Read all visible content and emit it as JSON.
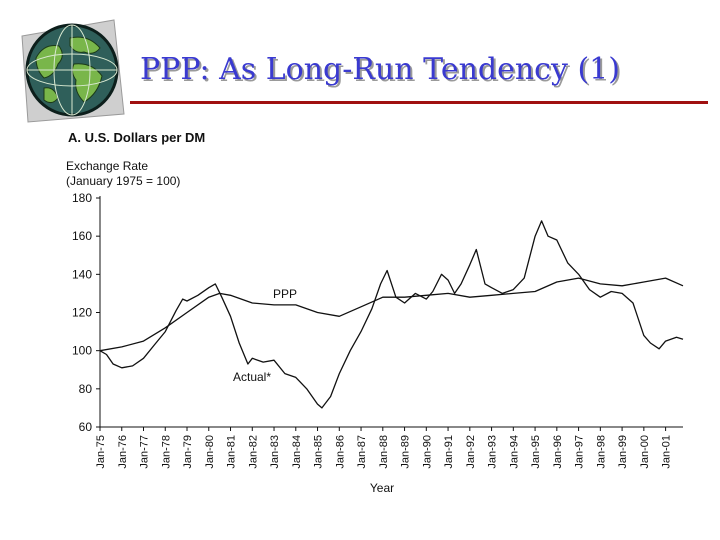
{
  "slide": {
    "title": "PPP: As Long-Run Tendency (1)",
    "title_color": "#3a3ad0",
    "rule_color": "#a01010",
    "logo": "globe-icon"
  },
  "chart_data": {
    "type": "line",
    "title": "A. U.S. Dollars per DM",
    "ylabel": "Exchange Rate (January 1975 = 100)",
    "xlabel": "Year",
    "ylim": [
      60,
      180
    ],
    "yticks": [
      60,
      80,
      100,
      120,
      140,
      160,
      180
    ],
    "categories": [
      "Jan-75",
      "Jan-76",
      "Jan-77",
      "Jan-78",
      "Jan-79",
      "Jan-80",
      "Jan-81",
      "Jan-82",
      "Jan-83",
      "Jan-84",
      "Jan-85",
      "Jan-86",
      "Jan-87",
      "Jan-88",
      "Jan-89",
      "Jan-90",
      "Jan-91",
      "Jan-92",
      "Jan-93",
      "Jan-94",
      "Jan-95",
      "Jan-96",
      "Jan-97",
      "Jan-98",
      "Jan-99",
      "Jan-00",
      "Jan-01"
    ],
    "series": [
      {
        "name": "Actual*",
        "label": "Actual*",
        "color": "#111111",
        "x": [
          1975.0,
          1975.3,
          1975.6,
          1976.0,
          1976.5,
          1977.0,
          1977.5,
          1978.0,
          1978.5,
          1978.8,
          1979.0,
          1979.5,
          1980.0,
          1980.3,
          1980.6,
          1981.0,
          1981.4,
          1981.8,
          1982.0,
          1982.5,
          1983.0,
          1983.5,
          1984.0,
          1984.5,
          1985.0,
          1985.2,
          1985.6,
          1986.0,
          1986.5,
          1987.0,
          1987.5,
          1987.9,
          1988.2,
          1988.6,
          1989.0,
          1989.5,
          1990.0,
          1990.3,
          1990.7,
          1991.0,
          1991.3,
          1991.6,
          1992.0,
          1992.3,
          1992.7,
          1993.0,
          1993.5,
          1994.0,
          1994.5,
          1995.0,
          1995.3,
          1995.6,
          1996.0,
          1996.5,
          1997.0,
          1997.5,
          1998.0,
          1998.5,
          1999.0,
          1999.5,
          2000.0,
          2000.3,
          2000.7,
          2001.0,
          2001.5,
          2001.8
        ],
        "values": [
          100,
          98,
          93,
          91,
          92,
          96,
          103,
          110,
          121,
          127,
          126,
          129,
          133,
          135,
          128,
          118,
          104,
          93,
          96,
          94,
          95,
          88,
          86,
          80,
          72,
          70,
          76,
          88,
          100,
          110,
          122,
          135,
          142,
          128,
          125,
          130,
          127,
          131,
          140,
          137,
          130,
          135,
          145,
          153,
          135,
          133,
          130,
          132,
          138,
          160,
          168,
          160,
          158,
          146,
          140,
          132,
          128,
          131,
          130,
          125,
          108,
          104,
          101,
          105,
          107,
          106
        ]
      },
      {
        "name": "PPP",
        "label": "PPP",
        "color": "#111111",
        "x": [
          1975.0,
          1976.0,
          1977.0,
          1978.0,
          1979.0,
          1980.0,
          1980.5,
          1981.0,
          1982.0,
          1983.0,
          1984.0,
          1985.0,
          1986.0,
          1987.0,
          1988.0,
          1989.0,
          1990.0,
          1991.0,
          1992.0,
          1993.0,
          1994.0,
          1995.0,
          1996.0,
          1997.0,
          1998.0,
          1999.0,
          2000.0,
          2001.0,
          2001.8
        ],
        "values": [
          100,
          102,
          105,
          112,
          120,
          128,
          130,
          129,
          125,
          124,
          124,
          120,
          118,
          123,
          128,
          128,
          129,
          130,
          128,
          129,
          130,
          131,
          136,
          138,
          135,
          134,
          136,
          138,
          134
        ]
      }
    ]
  }
}
